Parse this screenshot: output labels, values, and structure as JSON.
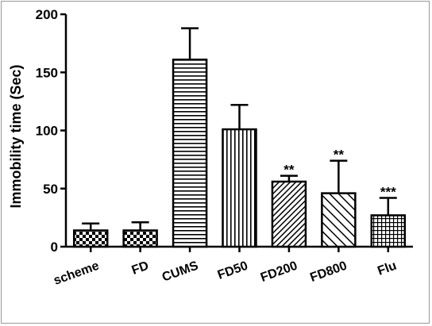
{
  "chart_data": {
    "type": "bar",
    "title": "",
    "xlabel": "",
    "ylabel": "Immobility time (Sec)",
    "ylim": [
      0,
      200
    ],
    "yticks": [
      0,
      50,
      100,
      150,
      200
    ],
    "grid": false,
    "categories": [
      "scheme",
      "FD",
      "CUMS",
      "FD50",
      "FD200",
      "FD800",
      "Flu"
    ],
    "values": [
      14,
      14,
      161,
      101,
      56,
      46,
      27
    ],
    "errors": [
      6,
      7,
      27,
      21,
      5,
      28,
      15
    ],
    "annotations": [
      "",
      "",
      "",
      "",
      "**",
      "**",
      "***"
    ],
    "patterns": [
      "checker",
      "checker",
      "horizontal",
      "vertical",
      "diagonal-dense",
      "diagonal-sparse",
      "grid"
    ]
  }
}
